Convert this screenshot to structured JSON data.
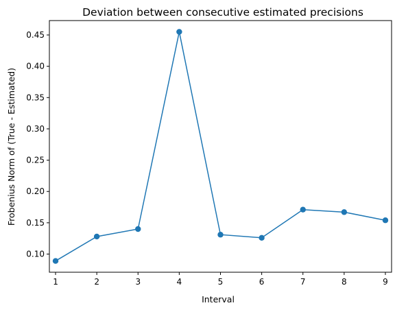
{
  "chart_data": {
    "type": "line",
    "title": "Deviation between consecutive estimated precisions",
    "xlabel": "Interval",
    "ylabel": "Frobenius Norm of (True - Estimated)",
    "x": [
      1,
      2,
      3,
      4,
      5,
      6,
      7,
      8,
      9
    ],
    "y": [
      0.089,
      0.128,
      0.14,
      0.455,
      0.131,
      0.126,
      0.171,
      0.167,
      0.154
    ],
    "xlim": [
      0.85,
      9.15
    ],
    "ylim": [
      0.071,
      0.473
    ],
    "xticks": [
      1,
      2,
      3,
      4,
      5,
      6,
      7,
      8,
      9
    ],
    "xtick_labels": [
      "1",
      "2",
      "3",
      "4",
      "5",
      "6",
      "7",
      "8",
      "9"
    ],
    "yticks": [
      0.1,
      0.15,
      0.2,
      0.25,
      0.3,
      0.35,
      0.4,
      0.45
    ],
    "ytick_labels": [
      "0.10",
      "0.15",
      "0.20",
      "0.25",
      "0.30",
      "0.35",
      "0.40",
      "0.45"
    ],
    "grid": false,
    "legend": "none",
    "line_color": "#1f77b4",
    "marker": "circle"
  }
}
